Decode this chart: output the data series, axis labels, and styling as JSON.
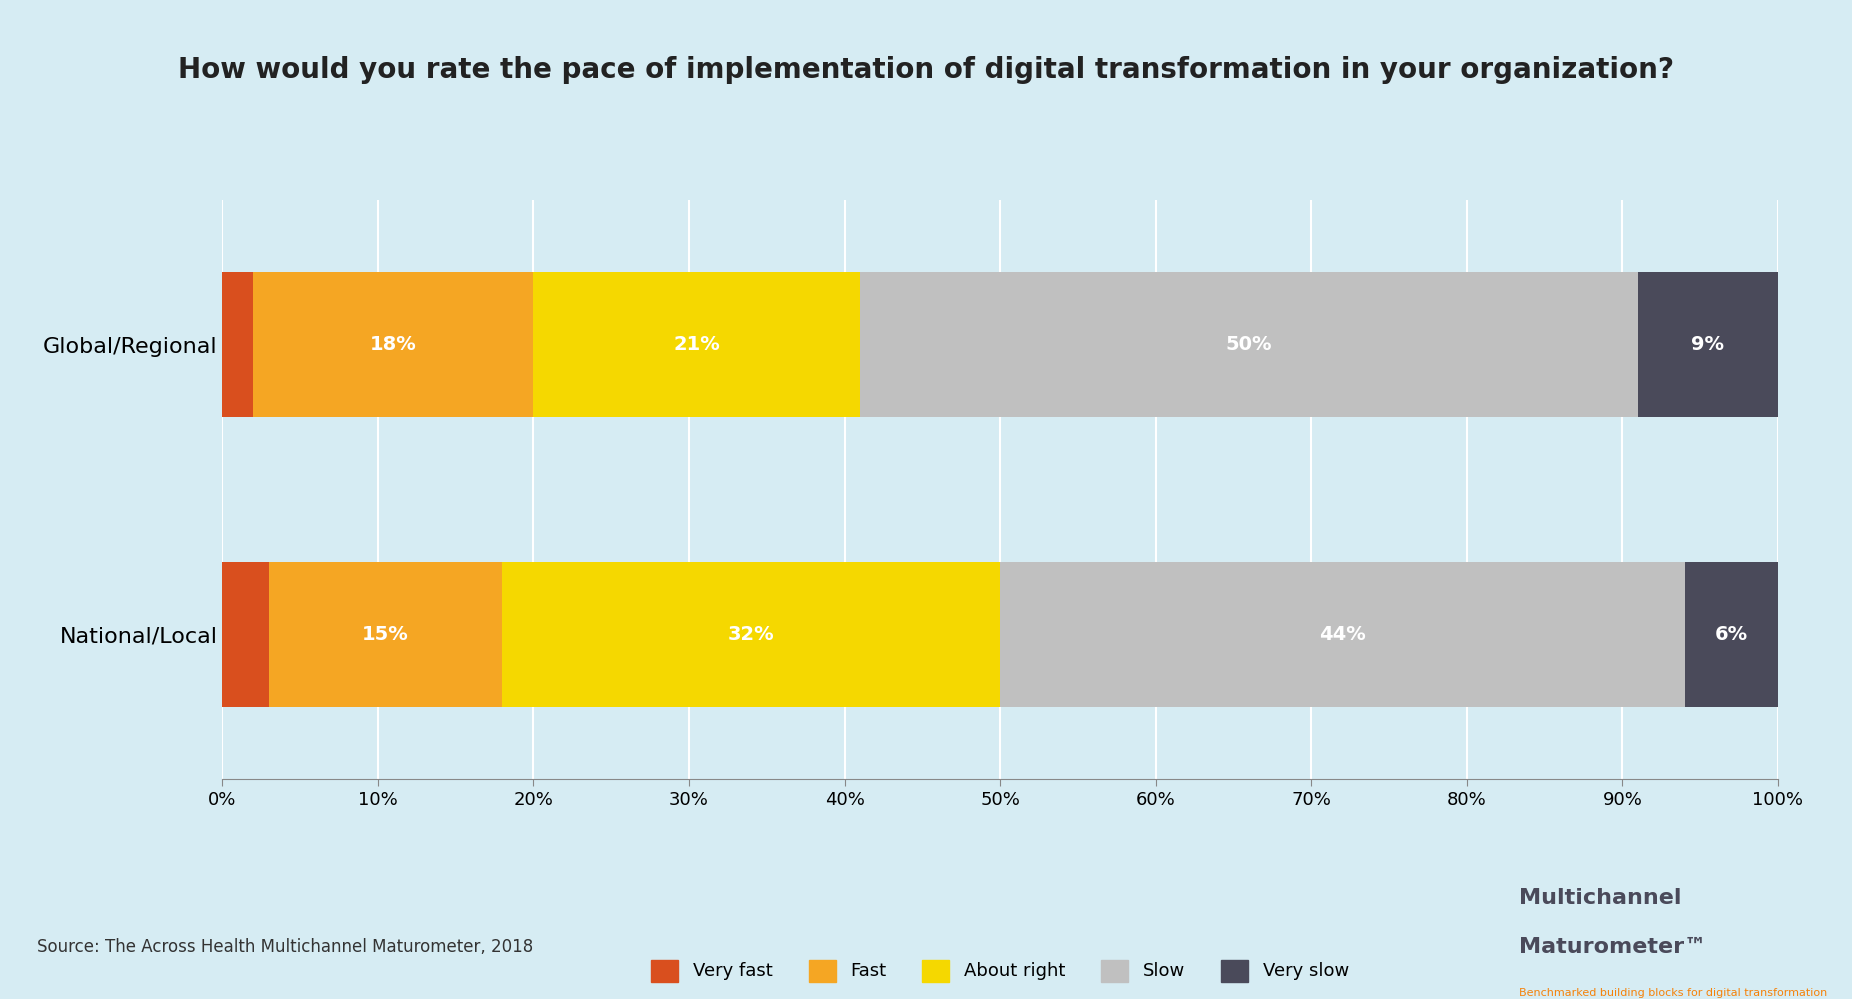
{
  "title": "How would you rate the pace of implementation of digital transformation in your organization?",
  "categories": [
    "Global/Regional",
    "National/Local"
  ],
  "segments": [
    "Very fast",
    "Fast",
    "About right",
    "Slow",
    "Very slow"
  ],
  "colors": [
    "#d94f1e",
    "#f5a623",
    "#f5d800",
    "#c0c0c0",
    "#4a4a5a"
  ],
  "values": [
    [
      2,
      18,
      21,
      50,
      9
    ],
    [
      3,
      15,
      32,
      44,
      6
    ]
  ],
  "background_color": "#d6ecf3",
  "plot_bg_color": "#d6ecf3",
  "footer_bg_color": "#ffffff",
  "title_fontsize": 20,
  "label_fontsize": 14,
  "tick_fontsize": 13,
  "legend_fontsize": 13,
  "source_text": "Source: The Across Health Multichannel Maturometer, 2018",
  "logo_text1": "Multichannel",
  "logo_text2": "Maturometer",
  "logo_sub": "Benchmarked building blocks for digital transformation",
  "logo_color": "#4a4a5a",
  "logo_orange": "#f5820a",
  "xlim": [
    0,
    100
  ],
  "bar_height": 0.5
}
